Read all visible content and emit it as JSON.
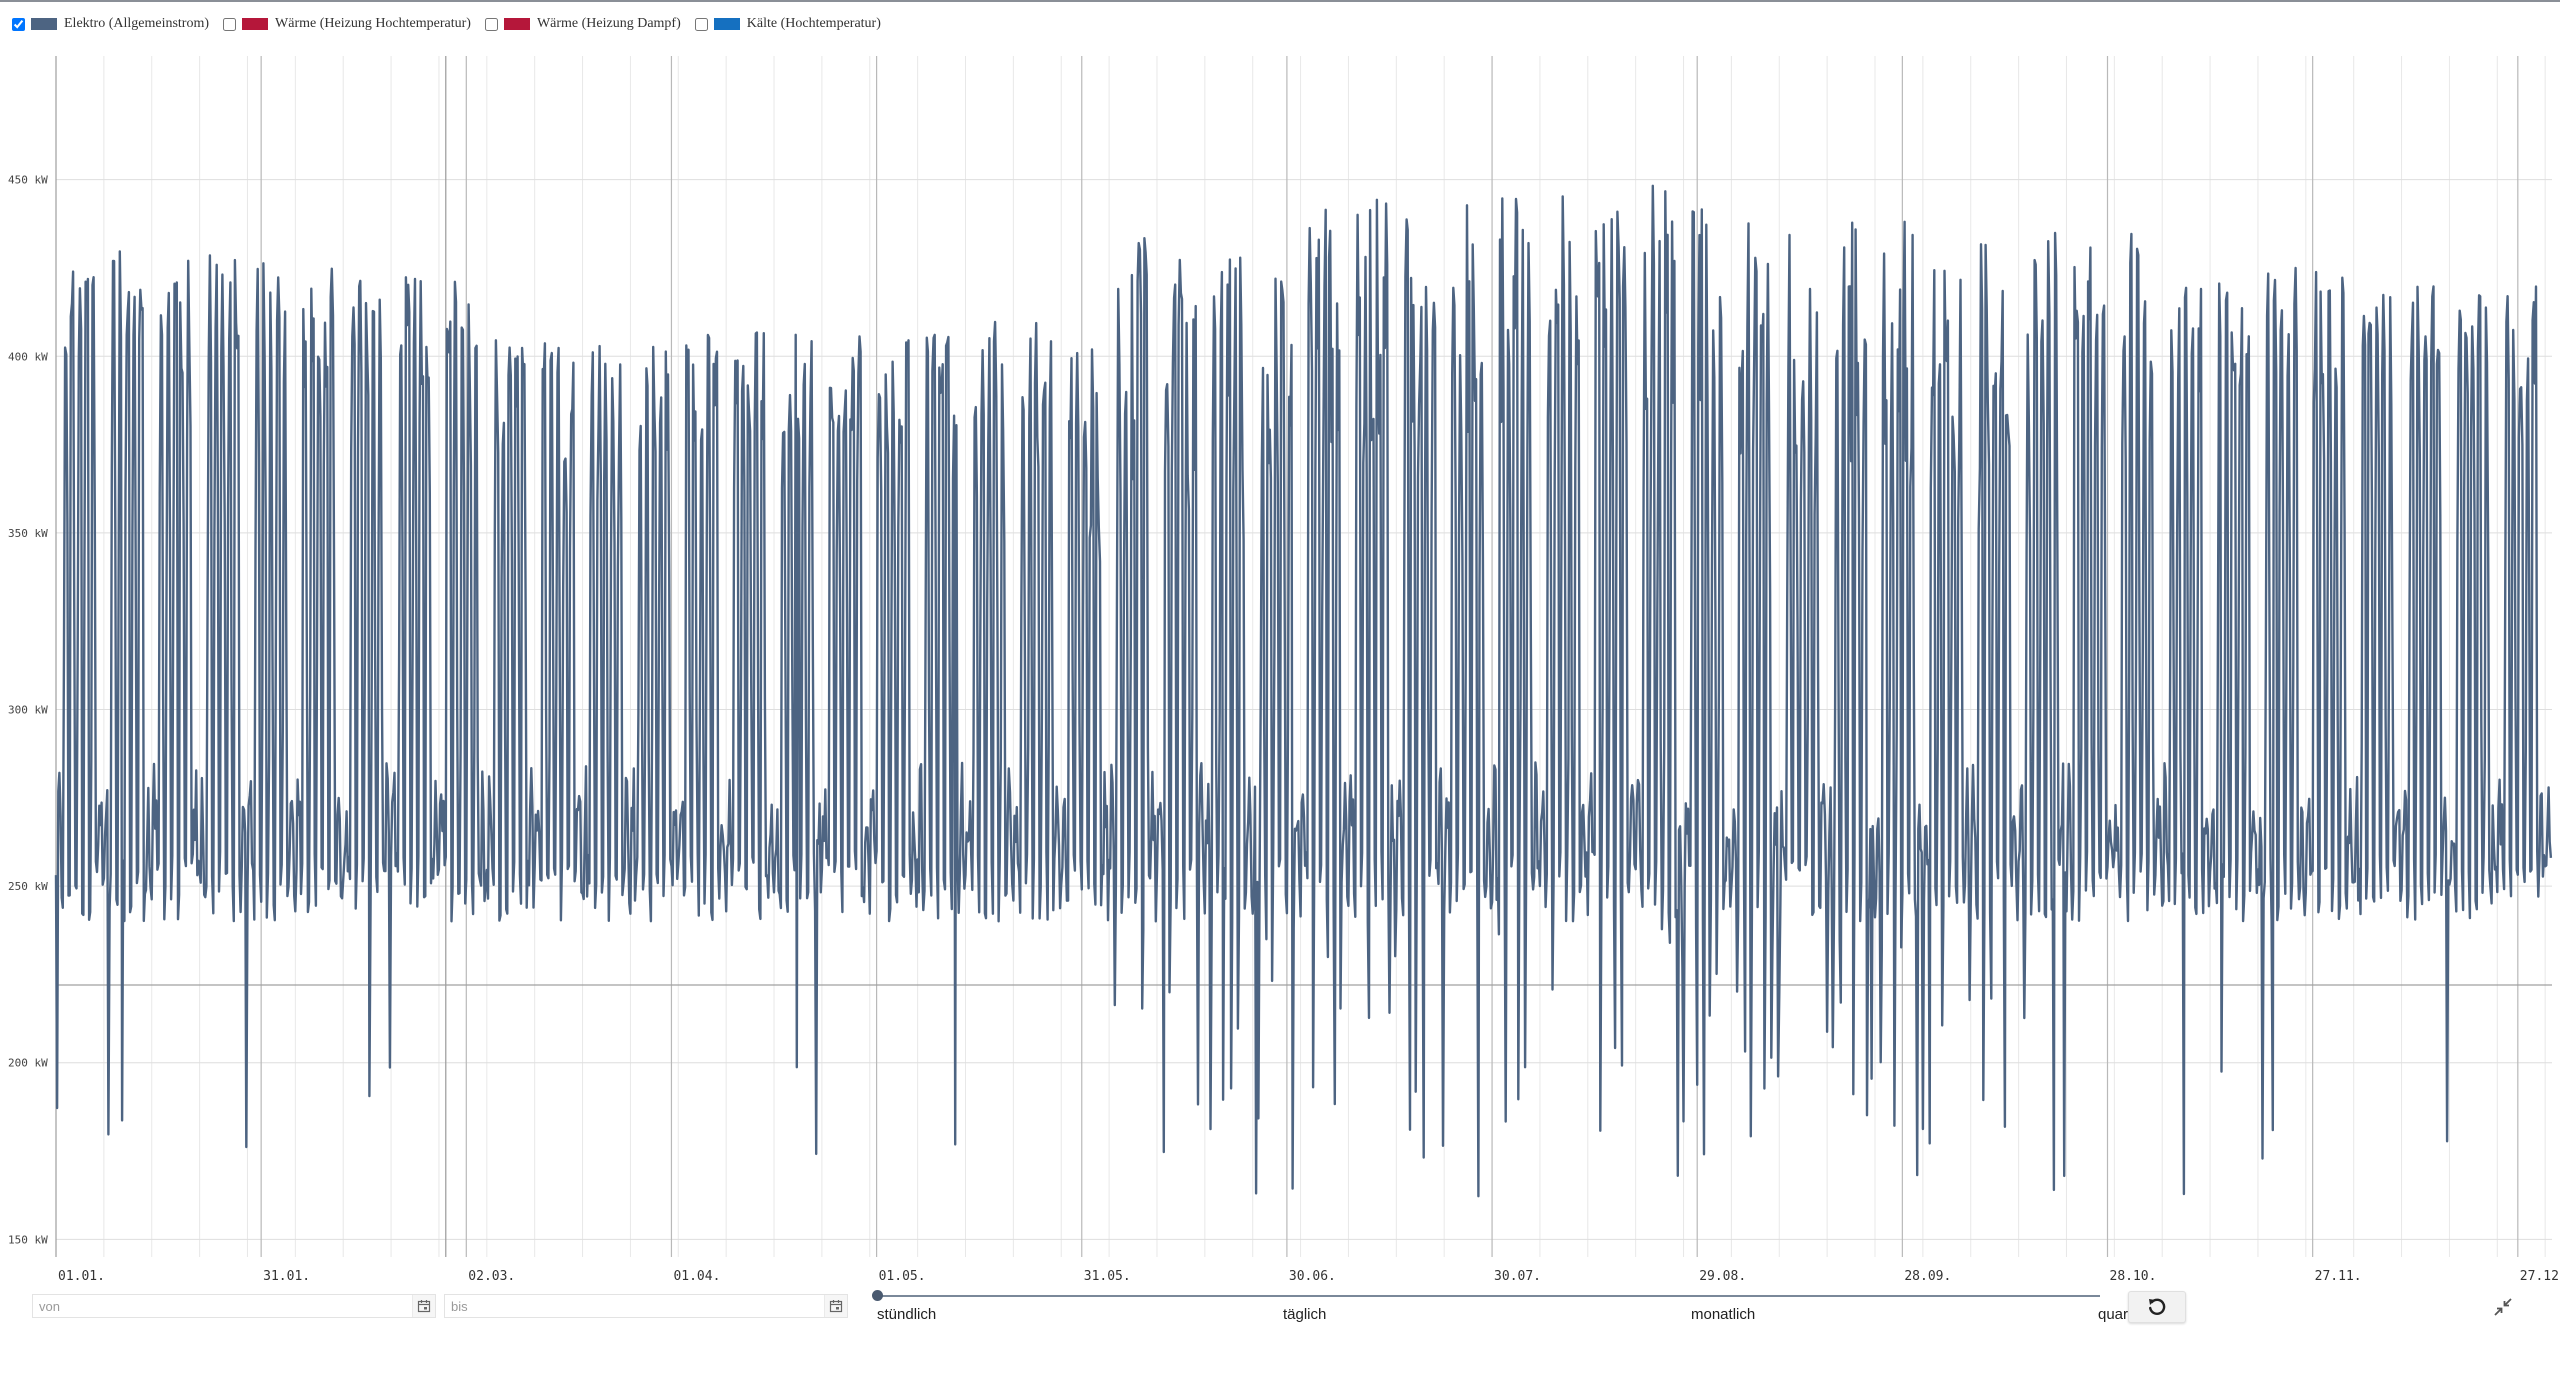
{
  "legend": {
    "items": [
      {
        "label": "Elektro (Allgemeinstrom)",
        "color": "#4d6482",
        "checked": true
      },
      {
        "label": "Wärme (Heizung Hochtemperatur)",
        "color": "#b5173a",
        "checked": false
      },
      {
        "label": "Wärme (Heizung Dampf)",
        "color": "#b5173a",
        "checked": false
      },
      {
        "label": "Kälte (Hochtemperatur)",
        "color": "#1570c0",
        "checked": false
      }
    ]
  },
  "chart_data": {
    "type": "line",
    "series": [
      {
        "name": "Elektro (Allgemeinstrom)",
        "color": "#4d6482"
      }
    ],
    "y_ticks": [
      "150 kW",
      "200 kW",
      "250 kW",
      "300 kW",
      "350 kW",
      "400 kW",
      "450 kW"
    ],
    "ylim": [
      145,
      485
    ],
    "x_ticks": [
      "01.01.",
      "31.01.",
      "02.03.",
      "01.04.",
      "01.05.",
      "31.05.",
      "30.06.",
      "30.07.",
      "29.08.",
      "28.09.",
      "28.10.",
      "27.11.",
      "27.12."
    ],
    "x_tick_days": [
      0,
      30,
      60,
      90,
      120,
      150,
      180,
      210,
      240,
      270,
      300,
      330,
      360
    ],
    "xlim_days": [
      0,
      365
    ],
    "reference_line_kW": 222,
    "marked_day": 57,
    "approx_daily_peaks_kW": {
      "Jan": 430,
      "Feb": 425,
      "Mar": 405,
      "Apr": 408,
      "May": 410,
      "Jun": 435,
      "Jul": 445,
      "Aug": 450,
      "Sep": 440,
      "Oct": 435,
      "Nov": 425,
      "Dec": 420
    },
    "approx_daily_base_kW": 245,
    "approx_extremes_kW": {
      "max": 485,
      "min": 150
    },
    "grid": true
  },
  "controls": {
    "from_placeholder": "von",
    "to_placeholder": "bis",
    "resolution_options": [
      "stündlich",
      "täglich",
      "monatlich",
      "quar"
    ]
  }
}
